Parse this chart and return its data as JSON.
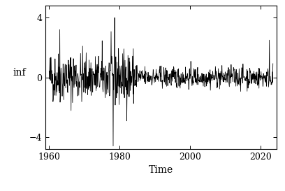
{
  "title": "",
  "xlabel": "Time",
  "ylabel": "inf",
  "xlim": [
    1959.0,
    2024.5
  ],
  "ylim": [
    -4.8,
    4.8
  ],
  "yticks": [
    -4,
    0,
    4
  ],
  "xticks": [
    1960,
    1980,
    2000,
    2020
  ],
  "background_color": "#ffffff",
  "line_color": "#000000",
  "line_width": 0.55,
  "seed": 42,
  "n_points": 756,
  "start_year": 1960.0,
  "end_year": 2023.5
}
